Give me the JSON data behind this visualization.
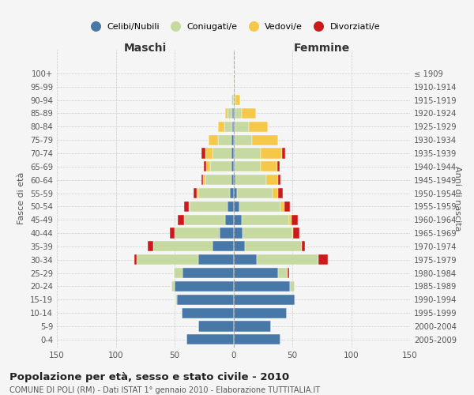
{
  "age_groups": [
    "0-4",
    "5-9",
    "10-14",
    "15-19",
    "20-24",
    "25-29",
    "30-34",
    "35-39",
    "40-44",
    "45-49",
    "50-54",
    "55-59",
    "60-64",
    "65-69",
    "70-74",
    "75-79",
    "80-84",
    "85-89",
    "90-94",
    "95-99",
    "100+"
  ],
  "birth_years": [
    "2005-2009",
    "2000-2004",
    "1995-1999",
    "1990-1994",
    "1985-1989",
    "1980-1984",
    "1975-1979",
    "1970-1974",
    "1965-1969",
    "1960-1964",
    "1955-1959",
    "1950-1954",
    "1945-1949",
    "1940-1944",
    "1935-1939",
    "1930-1934",
    "1925-1929",
    "1920-1924",
    "1915-1919",
    "1910-1914",
    "≤ 1909"
  ],
  "maschi_celibi": [
    40,
    30,
    44,
    48,
    50,
    43,
    30,
    18,
    12,
    7,
    5,
    3,
    2,
    2,
    2,
    2,
    1,
    1,
    0,
    0,
    0
  ],
  "maschi_coniugati": [
    0,
    0,
    0,
    1,
    3,
    8,
    52,
    50,
    38,
    35,
    32,
    27,
    22,
    18,
    16,
    11,
    7,
    4,
    2,
    0,
    0
  ],
  "maschi_vedovi": [
    0,
    0,
    0,
    0,
    0,
    0,
    0,
    0,
    0,
    0,
    1,
    1,
    2,
    3,
    6,
    8,
    5,
    2,
    0,
    0,
    0
  ],
  "maschi_divorziati": [
    0,
    0,
    0,
    0,
    0,
    0,
    2,
    5,
    4,
    5,
    4,
    3,
    1,
    2,
    3,
    0,
    0,
    0,
    0,
    0,
    0
  ],
  "femmine_nubili": [
    40,
    32,
    45,
    52,
    48,
    38,
    20,
    10,
    8,
    7,
    5,
    3,
    2,
    1,
    1,
    1,
    1,
    1,
    0,
    0,
    0
  ],
  "femmine_coniugate": [
    0,
    0,
    0,
    1,
    4,
    8,
    52,
    48,
    42,
    40,
    35,
    30,
    26,
    22,
    22,
    15,
    12,
    6,
    2,
    0,
    0
  ],
  "femmine_vedove": [
    0,
    0,
    0,
    0,
    0,
    0,
    0,
    0,
    1,
    2,
    3,
    5,
    10,
    14,
    18,
    22,
    16,
    12,
    4,
    1,
    0
  ],
  "femmine_divorziate": [
    0,
    0,
    0,
    0,
    0,
    1,
    8,
    3,
    5,
    6,
    5,
    4,
    2,
    2,
    3,
    0,
    0,
    0,
    0,
    0,
    0
  ],
  "colors": {
    "celibi": "#4878a8",
    "coniugati": "#c5d9a0",
    "vedovi": "#f5c84a",
    "divorziati": "#cc1a1a"
  },
  "xlim": 150,
  "title": "Popolazione per età, sesso e stato civile - 2010",
  "subtitle": "COMUNE DI POLI (RM) - Dati ISTAT 1° gennaio 2010 - Elaborazione TUTTITALIA.IT",
  "legend_labels": [
    "Celibi/Nubili",
    "Coniugati/e",
    "Vedovi/e",
    "Divorziati/e"
  ],
  "ylabel_left": "Fasce di età",
  "ylabel_right": "Anni di nascita",
  "header_maschi": "Maschi",
  "header_femmine": "Femmine",
  "bg_color": "#f5f5f5"
}
